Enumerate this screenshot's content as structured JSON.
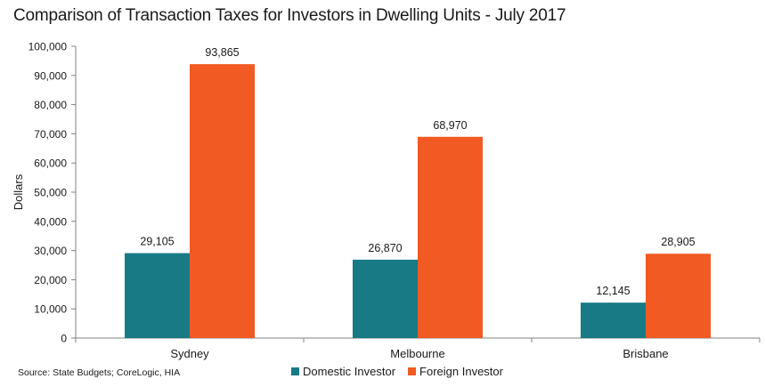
{
  "chart_data": {
    "type": "bar",
    "title": "Comparison of Transaction Taxes for Investors in Dwelling Units - July 2017",
    "ylabel": "Dollars",
    "xlabel": "",
    "categories": [
      "Sydney",
      "Melbourne",
      "Brisbane"
    ],
    "series": [
      {
        "name": "Domestic Investor",
        "color": "#187a85",
        "values": [
          29105,
          26870,
          12145
        ],
        "labels": [
          "29,105",
          "26,870",
          "12,145"
        ]
      },
      {
        "name": "Foreign Investor",
        "color": "#f15a22",
        "values": [
          93865,
          68970,
          28905
        ],
        "labels": [
          "93,865",
          "68,970",
          "28,905"
        ]
      }
    ],
    "ylim": [
      0,
      100000
    ],
    "yticks": [
      0,
      10000,
      20000,
      30000,
      40000,
      50000,
      60000,
      70000,
      80000,
      90000,
      100000
    ],
    "ytick_labels": [
      "0",
      "10,000",
      "20,000",
      "30,000",
      "40,000",
      "50,000",
      "60,000",
      "70,000",
      "80,000",
      "90,000",
      "100,000"
    ],
    "grid": false,
    "legend_position": "bottom",
    "source": "Source: State Budgets; CoreLogic,  HIA"
  }
}
